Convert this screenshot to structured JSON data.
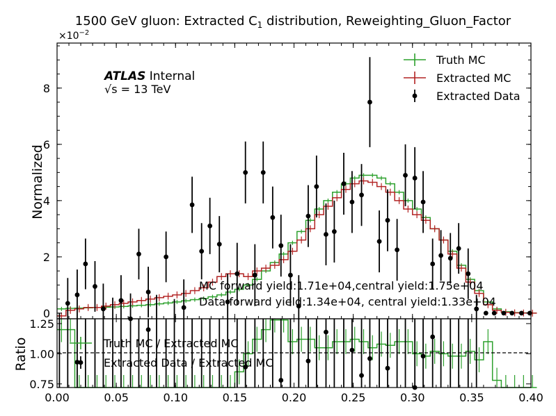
{
  "chart_data": {
    "type": "line",
    "title_main": "1500 GeV gluon: Extracted C",
    "title_sub": "1",
    "title_rest": " distribution, Reweighting_Gluon_Factor",
    "exponent_base": "×10",
    "exponent_power": "−2",
    "ylabel_top": "Normalized",
    "ylabel_bottom": "Ratio",
    "atlas_bold": "ATLAS",
    "atlas_rest": " Internal",
    "energy_sqrt": "√s",
    "energy_rest": " = 13 TeV",
    "annotations": [
      "MC forward yield:1.71e+04,central yield:1.75e+04",
      "Data forward yield:1.34e+04, central yield:1.33e+04"
    ],
    "legend_top": [
      {
        "label": "Truth MC",
        "color": "#2ca02c",
        "kind": "line"
      },
      {
        "label": "Extracted MC",
        "color": "#b22222",
        "kind": "line"
      },
      {
        "label": "Extracted Data",
        "color": "#000000",
        "kind": "point"
      }
    ],
    "legend_bottom": [
      {
        "label": "Truth MC / Extracted MC",
        "color": "#2ca02c",
        "kind": "line"
      },
      {
        "label": "Extracted Data / Extracted MC",
        "color": "#000000",
        "kind": "point"
      }
    ],
    "x_range": [
      0.0,
      0.4
    ],
    "y_range_top": [
      -0.2,
      9.6
    ],
    "y_range_bottom": [
      0.72,
      1.29
    ],
    "x_ticks": [
      "0.00",
      "0.05",
      "0.10",
      "0.15",
      "0.20",
      "0.25",
      "0.30",
      "0.35",
      "0.40"
    ],
    "y_ticks_top": [
      "0",
      "2",
      "4",
      "6",
      "8"
    ],
    "y_ticks_bottom": [
      "0.75",
      "1.00",
      "1.25"
    ],
    "bin_width": 0.0075,
    "truth_mc": [
      0.15,
      0.17,
      0.18,
      0.19,
      0.2,
      0.21,
      0.22,
      0.24,
      0.26,
      0.28,
      0.3,
      0.33,
      0.36,
      0.4,
      0.44,
      0.48,
      0.52,
      0.58,
      0.65,
      0.75,
      0.85,
      1.0,
      1.2,
      1.5,
      1.8,
      2.1,
      2.5,
      2.9,
      3.3,
      3.7,
      4.0,
      4.3,
      4.6,
      4.8,
      4.9,
      4.9,
      4.8,
      4.6,
      4.3,
      4.0,
      3.7,
      3.4,
      3.0,
      2.6,
      2.2,
      1.7,
      1.2,
      0.8,
      0.4,
      0.15,
      0.05,
      0.02,
      0.01,
      0.005
    ],
    "extracted_mc": [
      -0.1,
      0.1,
      0.15,
      0.2,
      0.2,
      0.25,
      0.3,
      0.35,
      0.4,
      0.45,
      0.5,
      0.55,
      0.6,
      0.65,
      0.7,
      0.8,
      0.9,
      1.1,
      1.3,
      1.4,
      1.4,
      1.3,
      1.5,
      1.6,
      1.7,
      1.9,
      2.2,
      2.6,
      3.0,
      3.5,
      3.8,
      4.1,
      4.4,
      4.6,
      4.7,
      4.65,
      4.5,
      4.3,
      4.0,
      3.7,
      3.5,
      3.3,
      3.0,
      2.6,
      2.1,
      1.6,
      1.1,
      0.7,
      0.3,
      0.1,
      0.03,
      0.01,
      0.005,
      0.0
    ],
    "data_points": [
      {
        "x": 0.002,
        "y": -0.9,
        "err": 0.9
      },
      {
        "x": 0.009,
        "y": 0.35,
        "err": 0.9
      },
      {
        "x": 0.017,
        "y": 0.65,
        "err": 0.9
      },
      {
        "x": 0.024,
        "y": 1.75,
        "err": 0.9
      },
      {
        "x": 0.032,
        "y": 0.95,
        "err": 0.9
      },
      {
        "x": 0.039,
        "y": 0.15,
        "err": 0.9
      },
      {
        "x": 0.047,
        "y": -0.35,
        "err": 0.9
      },
      {
        "x": 0.054,
        "y": 0.45,
        "err": 0.9
      },
      {
        "x": 0.062,
        "y": -0.2,
        "err": 0.9
      },
      {
        "x": 0.069,
        "y": 2.1,
        "err": 0.9
      },
      {
        "x": 0.077,
        "y": 0.75,
        "err": 0.9
      },
      {
        "x": 0.084,
        "y": -0.25,
        "err": 0.9
      },
      {
        "x": 0.092,
        "y": 2.0,
        "err": 0.9
      },
      {
        "x": 0.099,
        "y": -0.4,
        "err": 0.9
      },
      {
        "x": 0.107,
        "y": 0.2,
        "err": 1.0
      },
      {
        "x": 0.114,
        "y": 3.85,
        "err": 1.0
      },
      {
        "x": 0.122,
        "y": 2.2,
        "err": 1.0
      },
      {
        "x": 0.129,
        "y": 3.1,
        "err": 1.0
      },
      {
        "x": 0.137,
        "y": 2.45,
        "err": 1.0
      },
      {
        "x": 0.144,
        "y": 0.4,
        "err": 1.0
      },
      {
        "x": 0.152,
        "y": 1.4,
        "err": 1.1
      },
      {
        "x": 0.159,
        "y": 5.0,
        "err": 1.1
      },
      {
        "x": 0.167,
        "y": 1.35,
        "err": 1.1
      },
      {
        "x": 0.174,
        "y": 5.0,
        "err": 1.1
      },
      {
        "x": 0.182,
        "y": 3.4,
        "err": 1.1
      },
      {
        "x": 0.189,
        "y": 2.4,
        "err": 1.1
      },
      {
        "x": 0.197,
        "y": 1.35,
        "err": 1.1
      },
      {
        "x": 0.204,
        "y": 0.25,
        "err": 1.1
      },
      {
        "x": 0.212,
        "y": 3.45,
        "err": 1.1
      },
      {
        "x": 0.219,
        "y": 4.5,
        "err": 1.1
      },
      {
        "x": 0.227,
        "y": 2.8,
        "err": 1.1
      },
      {
        "x": 0.234,
        "y": 2.9,
        "err": 1.1
      },
      {
        "x": 0.242,
        "y": 4.6,
        "err": 1.1
      },
      {
        "x": 0.249,
        "y": 3.95,
        "err": 1.1
      },
      {
        "x": 0.257,
        "y": 4.2,
        "err": 1.1
      },
      {
        "x": 0.264,
        "y": 7.5,
        "err": 1.6
      },
      {
        "x": 0.272,
        "y": 2.55,
        "err": 1.1
      },
      {
        "x": 0.279,
        "y": 3.3,
        "err": 1.1
      },
      {
        "x": 0.287,
        "y": 2.25,
        "err": 1.1
      },
      {
        "x": 0.294,
        "y": 4.9,
        "err": 1.1
      },
      {
        "x": 0.302,
        "y": 4.8,
        "err": 1.1
      },
      {
        "x": 0.309,
        "y": 3.95,
        "err": 1.1
      },
      {
        "x": 0.317,
        "y": 1.75,
        "err": 0.9
      },
      {
        "x": 0.324,
        "y": 2.05,
        "err": 0.9
      },
      {
        "x": 0.332,
        "y": 1.95,
        "err": 0.9
      },
      {
        "x": 0.339,
        "y": 2.3,
        "err": 0.9
      },
      {
        "x": 0.347,
        "y": 1.4,
        "err": 0.9
      },
      {
        "x": 0.354,
        "y": 0.15,
        "err": 0.5
      },
      {
        "x": 0.362,
        "y": 0.0,
        "err": 0.0
      },
      {
        "x": 0.369,
        "y": 0.0,
        "err": 0.0
      },
      {
        "x": 0.377,
        "y": 0.0,
        "err": 0.0
      },
      {
        "x": 0.384,
        "y": 0.0,
        "err": 0.0
      },
      {
        "x": 0.392,
        "y": 0.0,
        "err": 0.0
      },
      {
        "x": 0.399,
        "y": 0.0,
        "err": 0.0
      }
    ],
    "ratio_truth": [
      1.2,
      1.2,
      0.7,
      0.7,
      0.7,
      0.7,
      0.7,
      0.7,
      0.7,
      0.7,
      0.7,
      0.7,
      0.7,
      0.7,
      0.7,
      0.7,
      0.7,
      0.7,
      0.7,
      0.7,
      0.85,
      1.0,
      1.12,
      1.2,
      1.28,
      1.28,
      1.1,
      1.12,
      1.12,
      1.05,
      1.05,
      1.1,
      1.1,
      1.12,
      1.1,
      1.05,
      1.08,
      1.07,
      1.1,
      1.1,
      1.0,
      0.98,
      1.02,
      1.0,
      0.98,
      0.98,
      1.02,
      0.95,
      1.1,
      0.78,
      0.7,
      0.7,
      0.7,
      0.7
    ],
    "ratio_data": [
      {
        "x": 0.017,
        "y": 0.93
      },
      {
        "x": 0.077,
        "y": 1.2
      },
      {
        "x": 0.159,
        "y": 0.89
      },
      {
        "x": 0.189,
        "y": 0.78
      },
      {
        "x": 0.212,
        "y": 0.94
      },
      {
        "x": 0.227,
        "y": 1.18
      },
      {
        "x": 0.249,
        "y": 1.03
      },
      {
        "x": 0.257,
        "y": 0.82
      },
      {
        "x": 0.264,
        "y": 0.96
      },
      {
        "x": 0.279,
        "y": 0.88
      },
      {
        "x": 0.302,
        "y": 0.72
      },
      {
        "x": 0.309,
        "y": 0.98
      },
      {
        "x": 0.317,
        "y": 1.14
      }
    ]
  }
}
